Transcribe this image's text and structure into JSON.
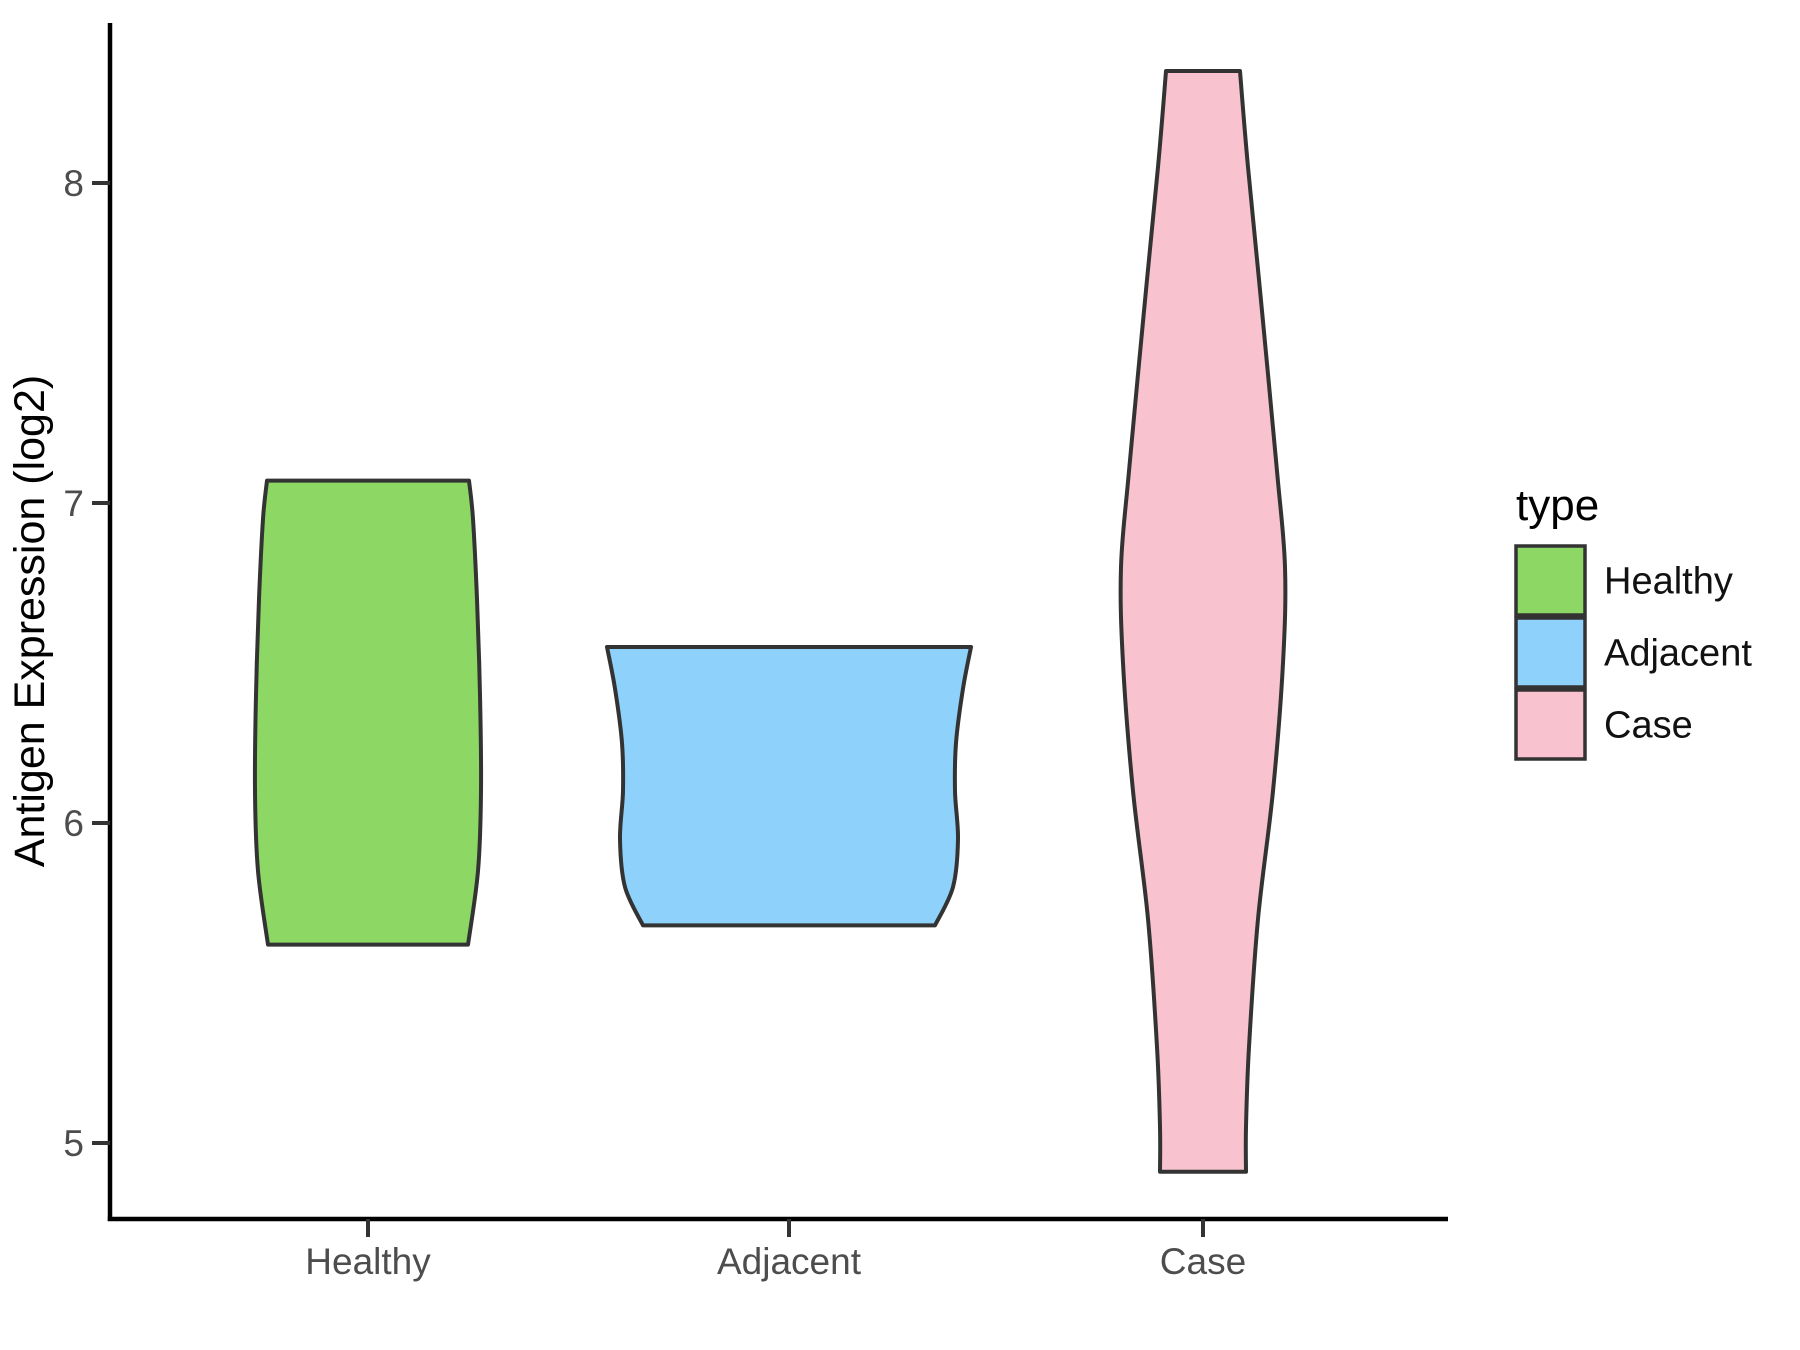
{
  "chart_data": {
    "type": "violin",
    "title": "",
    "xlabel": "",
    "ylabel": "Antigen Expression (log2)",
    "categories": [
      "Healthy",
      "Adjacent",
      "Case"
    ],
    "y_ticks": [
      8,
      7,
      6,
      5
    ],
    "ylim": [
      4.76,
      8.5
    ],
    "grid": "off",
    "panel_background": "#FFFFFF",
    "axis_color": "#000000",
    "tick_color": "#333333",
    "tick_label_color": "#4D4D4D",
    "legend": {
      "title": "type",
      "position": "right",
      "entries": [
        {
          "label": "Healthy",
          "color": "#8DD865"
        },
        {
          "label": "Adjacent",
          "color": "#8ED2FB"
        },
        {
          "label": "Case",
          "color": "#F8C2CE"
        }
      ]
    },
    "series": [
      {
        "name": "Healthy",
        "fill": "#8DD865",
        "outline": "#333333",
        "y_min": 5.62,
        "y_max": 7.07,
        "half_width_unit": "px",
        "profile": [
          [
            7.07,
            101
          ],
          [
            6.95,
            105
          ],
          [
            6.7,
            109
          ],
          [
            6.4,
            112
          ],
          [
            6.1,
            113
          ],
          [
            5.85,
            110
          ],
          [
            5.62,
            100
          ]
        ]
      },
      {
        "name": "Adjacent",
        "fill": "#8ED2FB",
        "outline": "#333333",
        "y_min": 5.68,
        "y_max": 6.55,
        "half_width_unit": "px",
        "profile": [
          [
            6.55,
            182
          ],
          [
            6.42,
            174
          ],
          [
            6.25,
            167
          ],
          [
            6.1,
            166
          ],
          [
            5.95,
            169
          ],
          [
            5.8,
            164
          ],
          [
            5.68,
            146
          ]
        ]
      },
      {
        "name": "Case",
        "fill": "#F8C2CE",
        "outline": "#333333",
        "y_min": 4.91,
        "y_max": 8.35,
        "half_width_unit": "px",
        "profile": [
          [
            8.35,
            37
          ],
          [
            8.05,
            45
          ],
          [
            7.6,
            59
          ],
          [
            7.1,
            74
          ],
          [
            6.8,
            82
          ],
          [
            6.5,
            80
          ],
          [
            6.1,
            70
          ],
          [
            5.7,
            55
          ],
          [
            5.3,
            46
          ],
          [
            5.05,
            43
          ],
          [
            4.91,
            43
          ]
        ]
      }
    ]
  }
}
